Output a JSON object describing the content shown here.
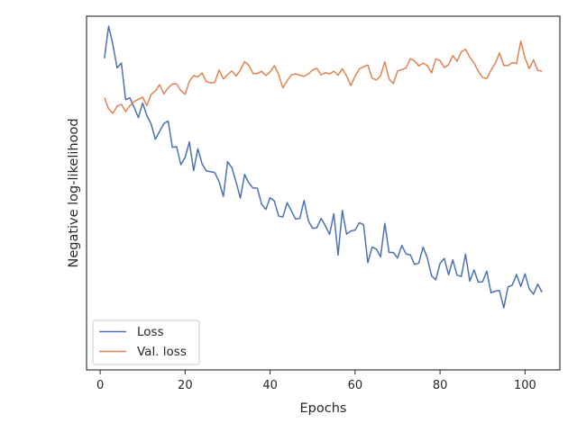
{
  "chart_data": {
    "type": "line",
    "xlabel": "Epochs",
    "ylabel": "Negative log-likelihood",
    "xlim": [
      -3.2,
      108.2
    ],
    "xticks": [
      0,
      20,
      40,
      60,
      80,
      100
    ],
    "ylim": [
      -0.03,
      1.03
    ],
    "y_tick_labels_shown": false,
    "grid": false,
    "legend_position": "lower-left",
    "series": [
      {
        "name": "Loss",
        "color": "#4c72b0",
        "x": [
          1,
          2,
          3,
          4,
          5,
          6,
          7,
          8,
          9,
          10,
          11,
          12,
          13,
          14,
          15,
          16,
          17,
          18,
          19,
          20,
          21,
          22,
          23,
          24,
          25,
          26,
          27,
          28,
          29,
          30,
          31,
          32,
          33,
          34,
          35,
          36,
          37,
          38,
          39,
          40,
          41,
          42,
          43,
          44,
          45,
          46,
          47,
          48,
          49,
          50,
          51,
          52,
          53,
          54,
          55,
          56,
          57,
          58,
          59,
          60,
          61,
          62,
          63,
          64,
          65,
          66,
          67,
          68,
          69,
          70,
          71,
          72,
          73,
          74,
          75,
          76,
          77,
          78,
          79,
          80,
          81,
          82,
          83,
          84,
          85,
          86,
          87,
          88,
          89,
          90,
          91,
          92,
          93,
          94,
          95,
          96,
          97,
          98,
          99,
          100,
          101,
          102,
          103,
          104
        ],
        "y": [
          0.904,
          1.0,
          0.944,
          0.875,
          0.89,
          0.78,
          0.785,
          0.757,
          0.726,
          0.77,
          0.732,
          0.707,
          0.661,
          0.685,
          0.708,
          0.716,
          0.637,
          0.639,
          0.585,
          0.607,
          0.653,
          0.567,
          0.633,
          0.587,
          0.566,
          0.564,
          0.561,
          0.534,
          0.49,
          0.594,
          0.576,
          0.533,
          0.485,
          0.556,
          0.53,
          0.515,
          0.515,
          0.467,
          0.451,
          0.486,
          0.476,
          0.431,
          0.428,
          0.471,
          0.447,
          0.422,
          0.424,
          0.478,
          0.417,
          0.394,
          0.396,
          0.424,
          0.402,
          0.376,
          0.438,
          0.314,
          0.448,
          0.377,
          0.386,
          0.389,
          0.411,
          0.405,
          0.291,
          0.338,
          0.332,
          0.309,
          0.409,
          0.322,
          0.322,
          0.305,
          0.343,
          0.317,
          0.315,
          0.286,
          0.29,
          0.338,
          0.306,
          0.252,
          0.24,
          0.289,
          0.304,
          0.255,
          0.3,
          0.254,
          0.25,
          0.317,
          0.236,
          0.27,
          0.233,
          0.234,
          0.266,
          0.201,
          0.206,
          0.208,
          0.156,
          0.219,
          0.224,
          0.256,
          0.22,
          0.258,
          0.212,
          0.197,
          0.227,
          0.203
        ]
      },
      {
        "name": "Val. loss",
        "color": "#dd8452",
        "x": [
          1,
          2,
          3,
          4,
          5,
          6,
          7,
          8,
          9,
          10,
          11,
          12,
          13,
          14,
          15,
          16,
          17,
          18,
          19,
          20,
          21,
          22,
          23,
          24,
          25,
          26,
          27,
          28,
          29,
          30,
          31,
          32,
          33,
          34,
          35,
          36,
          37,
          38,
          39,
          40,
          41,
          42,
          43,
          44,
          45,
          46,
          47,
          48,
          49,
          50,
          51,
          52,
          53,
          54,
          55,
          56,
          57,
          58,
          59,
          60,
          61,
          62,
          63,
          64,
          65,
          66,
          67,
          68,
          69,
          70,
          71,
          72,
          73,
          74,
          75,
          76,
          77,
          78,
          79,
          80,
          81,
          82,
          83,
          84,
          85,
          86,
          87,
          88,
          89,
          90,
          91,
          92,
          93,
          94,
          95,
          96,
          97,
          98,
          99,
          100,
          101,
          102,
          103,
          104
        ],
        "y": [
          0.786,
          0.752,
          0.739,
          0.76,
          0.766,
          0.744,
          0.762,
          0.774,
          0.781,
          0.787,
          0.762,
          0.796,
          0.806,
          0.825,
          0.797,
          0.815,
          0.827,
          0.827,
          0.807,
          0.796,
          0.835,
          0.852,
          0.848,
          0.86,
          0.834,
          0.83,
          0.832,
          0.869,
          0.842,
          0.855,
          0.866,
          0.851,
          0.868,
          0.894,
          0.883,
          0.858,
          0.858,
          0.865,
          0.852,
          0.863,
          0.882,
          0.856,
          0.815,
          0.836,
          0.854,
          0.857,
          0.853,
          0.85,
          0.857,
          0.869,
          0.874,
          0.854,
          0.861,
          0.857,
          0.865,
          0.853,
          0.873,
          0.851,
          0.822,
          0.85,
          0.872,
          0.878,
          0.884,
          0.844,
          0.839,
          0.851,
          0.893,
          0.842,
          0.828,
          0.866,
          0.87,
          0.875,
          0.903,
          0.896,
          0.881,
          0.889,
          0.882,
          0.86,
          0.902,
          0.897,
          0.876,
          0.885,
          0.912,
          0.895,
          0.923,
          0.931,
          0.907,
          0.89,
          0.865,
          0.846,
          0.843,
          0.868,
          0.889,
          0.92,
          0.882,
          0.882,
          0.891,
          0.888,
          0.955,
          0.905,
          0.873,
          0.899,
          0.868,
          0.865
        ]
      }
    ]
  }
}
